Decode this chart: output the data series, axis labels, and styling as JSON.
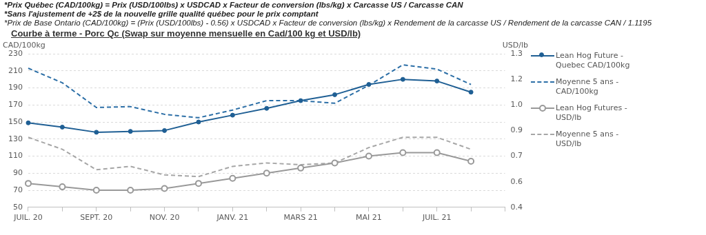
{
  "chart_data": {
    "type": "line",
    "title": "Courbe à terme - Porc Qc (Swap sur moyenne mensuelle en Cad/100 kg et USD/lb)",
    "annotations": [
      "*Prix Québec (CAD/100kg) = Prix (USD/100lbs) x USDCAD x Facteur de conversion (lbs/kg) x Carcasse US / Carcasse CAN",
      "*Sans l'ajustement de +2$ de la nouvelle grille qualité québec pour le prix comptant",
      "*Prix de Base Ontario (CAD/100kg) = (Prix (USD/100lbs) - 0.56) x USDCAD x Facteur de conversion (lbs/kg) x Rendement de la carcasse US / Rendement de la carcasse CAN / 1.1195"
    ],
    "ylabel": "CAD/100kg",
    "y2label": "USD/lb",
    "categories": [
      "JUIL. 20",
      null,
      "SEPT. 20",
      null,
      "NOV. 20",
      null,
      "JANV. 21",
      null,
      "MARS 21",
      null,
      "MAI 21",
      null,
      "JUIL. 21",
      null,
      null
    ],
    "ylim": [
      50,
      230
    ],
    "yticks": [
      50,
      70,
      90,
      110,
      130,
      150,
      170,
      190,
      210,
      230
    ],
    "y2lim": [
      0.4,
      1.3
    ],
    "y2ticks": [
      0.4,
      {
        "value": 0.55,
        "label": "0.6"
      },
      0.7,
      {
        "value": 0.85,
        "label": "0.9"
      },
      {
        "value": 1.0,
        "label": "1.0"
      },
      {
        "value": 1.15,
        "label": "1.2"
      },
      1.3
    ],
    "grid": "y",
    "legend": "right",
    "series": [
      {
        "name": "Lean Hog Future - Quebec CAD/100kg",
        "color": "#1f5f94",
        "marker": "circle",
        "line_style": "solid",
        "values": [
          149,
          144,
          138,
          139,
          140,
          150,
          158,
          166,
          175,
          182,
          194,
          200,
          198,
          185,
          null
        ]
      },
      {
        "name": "Moyenne 5 ans - CAD/100kg",
        "color": "#2b6ea6",
        "marker": "none",
        "line_style": "dashed",
        "values": [
          213,
          196,
          167,
          168,
          159,
          155,
          164,
          175,
          175,
          172,
          193,
          217,
          212,
          194,
          null
        ]
      },
      {
        "name": "Lean Hog Futures - USD/lb",
        "color": "#999999",
        "marker": "circle",
        "line_style": "solid",
        "axis": "y2",
        "values": [
          0.54,
          0.52,
          0.5,
          0.5,
          0.51,
          0.54,
          0.57,
          0.6,
          0.63,
          0.66,
          0.7,
          0.72,
          0.72,
          0.67,
          null
        ]
      },
      {
        "name": "Moyenne 5 ans - USD/lb",
        "color": "#a6a6a6",
        "marker": "none",
        "line_style": "dashed",
        "axis": "y2",
        "values": [
          0.81,
          0.74,
          0.62,
          0.64,
          0.59,
          0.58,
          0.64,
          0.66,
          0.65,
          0.66,
          0.75,
          0.81,
          0.81,
          0.74,
          null
        ]
      }
    ]
  }
}
